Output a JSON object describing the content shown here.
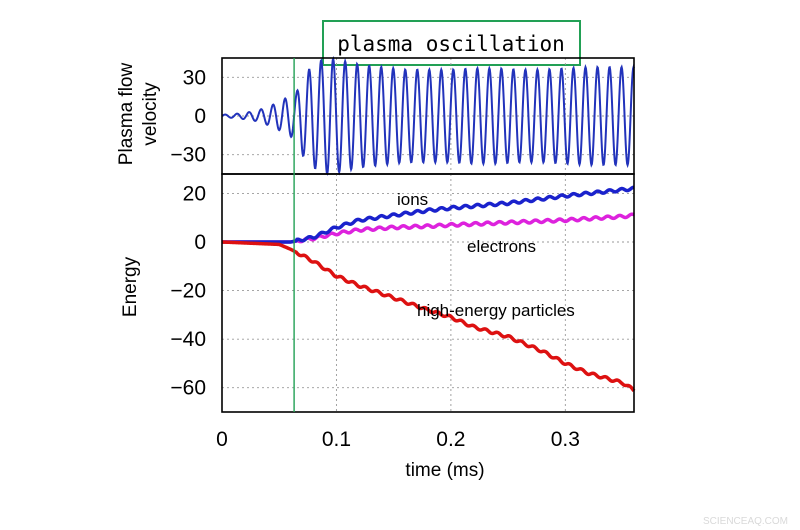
{
  "chart_data": [
    {
      "type": "line",
      "panel": "top",
      "title_callout": "plasma oscillation",
      "ylabel_lines": [
        "Plasma flow",
        "velocity"
      ],
      "yticks": [
        30,
        0,
        -30
      ],
      "ylim": [
        -45,
        45
      ],
      "xlim": [
        0,
        0.36
      ],
      "grid": true,
      "series": [
        {
          "color": "#2233bb",
          "x": [
            0,
            0.01,
            0.02,
            0.03,
            0.04,
            0.05,
            0.06,
            0.065,
            0.07,
            0.08,
            0.09,
            0.1,
            0.12,
            0.14,
            0.16,
            0.18,
            0.2,
            0.22,
            0.24,
            0.26,
            0.28,
            0.3,
            0.32,
            0.34,
            0.36
          ],
          "amplitude": [
            1,
            1.5,
            2.5,
            4,
            7,
            11,
            16,
            18,
            30,
            40,
            45,
            44,
            40,
            38,
            36,
            36,
            36,
            37,
            37,
            36,
            36,
            37,
            38,
            38,
            38
          ]
        }
      ],
      "oscillation_period_ms": 0.0105
    },
    {
      "type": "line",
      "panel": "bottom",
      "xlabel": "time (ms)",
      "ylabel": "Energy",
      "xticks": [
        0,
        0.1,
        0.2,
        0.3
      ],
      "yticks": [
        20,
        0,
        -20,
        -40,
        -60
      ],
      "xlim": [
        0,
        0.36
      ],
      "ylim": [
        -70,
        28
      ],
      "grid": true,
      "series": [
        {
          "name": "ions",
          "color": "#1a22cc",
          "x": [
            0,
            0.06,
            0.08,
            0.1,
            0.12,
            0.15,
            0.18,
            0.2,
            0.25,
            0.3,
            0.35,
            0.36
          ],
          "y": [
            0,
            0,
            2,
            6,
            9,
            11,
            13,
            14,
            16,
            19,
            21.5,
            22
          ]
        },
        {
          "name": "electrons",
          "color": "#dd22dd",
          "x": [
            0,
            0.06,
            0.08,
            0.1,
            0.12,
            0.15,
            0.18,
            0.2,
            0.25,
            0.3,
            0.35,
            0.36
          ],
          "y": [
            0,
            0,
            1.5,
            3.5,
            5,
            6,
            6.5,
            7,
            8,
            9,
            10.5,
            11
          ]
        },
        {
          "name": "high-energy particles",
          "color": "#dd1111",
          "x": [
            0,
            0.05,
            0.06,
            0.08,
            0.1,
            0.12,
            0.15,
            0.18,
            0.2,
            0.22,
            0.25,
            0.28,
            0.3,
            0.32,
            0.35,
            0.36
          ],
          "y": [
            0,
            -1,
            -3,
            -8,
            -14,
            -18,
            -23,
            -28,
            -31,
            -35,
            -39,
            -45,
            -50,
            -54,
            -58,
            -61
          ]
        }
      ]
    }
  ],
  "colors": {
    "callout_border": "#22a055",
    "marker_line": "#22a055",
    "watermark": "#d9d9d9"
  },
  "marker_time_ms": 0.063,
  "watermark": "SCIENCEAQ.COM"
}
